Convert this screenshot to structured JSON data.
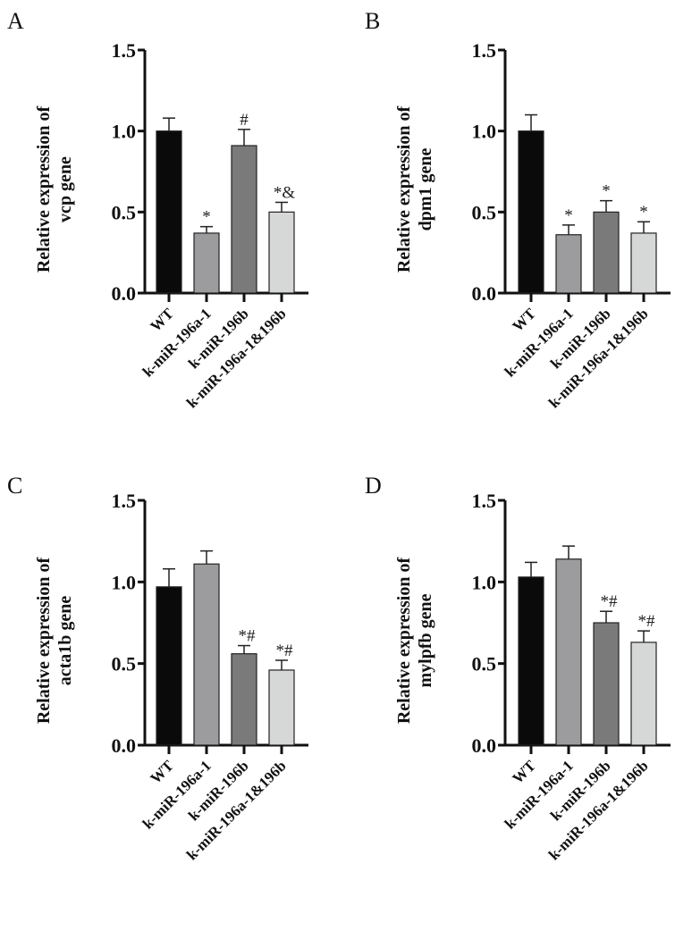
{
  "chart_data": [
    {
      "type": "bar",
      "panel": "A",
      "title": "",
      "ylabel_line1": "Relative expression of",
      "ylabel_line2": "vcp gene",
      "xlabel": "",
      "categories": [
        "WT",
        "k-miR-196a-1",
        "k-miR-196b",
        "k-miR-196a-1&196b"
      ],
      "values": [
        1.0,
        0.37,
        0.91,
        0.5
      ],
      "errors": [
        0.08,
        0.04,
        0.1,
        0.06
      ],
      "annotations": [
        "",
        "*",
        "#",
        "*&"
      ],
      "ylim": [
        0,
        1.5
      ],
      "yticks": [
        "0.0",
        "0.5",
        "1.0",
        "1.5"
      ],
      "grid": false
    },
    {
      "type": "bar",
      "panel": "B",
      "title": "",
      "ylabel_line1": "Relative expression of",
      "ylabel_line2": "dpm1 gene",
      "xlabel": "",
      "categories": [
        "WT",
        "k-miR-196a-1",
        "k-miR-196b",
        "k-miR-196a-1&196b"
      ],
      "values": [
        1.0,
        0.36,
        0.5,
        0.37
      ],
      "errors": [
        0.1,
        0.06,
        0.07,
        0.07
      ],
      "annotations": [
        "",
        "*",
        "*",
        "*"
      ],
      "ylim": [
        0,
        1.5
      ],
      "yticks": [
        "0.0",
        "0.5",
        "1.0",
        "1.5"
      ],
      "grid": false
    },
    {
      "type": "bar",
      "panel": "C",
      "title": "",
      "ylabel_line1": "Relative expression of",
      "ylabel_line2": "acta1b gene",
      "xlabel": "",
      "categories": [
        "WT",
        "k-miR-196a-1",
        "k-miR-196b",
        "k-miR-196a-1&196b"
      ],
      "values": [
        0.97,
        1.11,
        0.56,
        0.46
      ],
      "errors": [
        0.11,
        0.08,
        0.05,
        0.06
      ],
      "annotations": [
        "",
        "",
        "*#",
        "*#"
      ],
      "ylim": [
        0,
        1.5
      ],
      "yticks": [
        "0.0",
        "0.5",
        "1.0",
        "1.5"
      ],
      "grid": false
    },
    {
      "type": "bar",
      "panel": "D",
      "title": "",
      "ylabel_line1": "Relative expression of",
      "ylabel_line2": "mylpfb gene",
      "xlabel": "",
      "categories": [
        "WT",
        "k-miR-196a-1",
        "k-miR-196b",
        "k-miR-196a-1&196b"
      ],
      "values": [
        1.03,
        1.14,
        0.75,
        0.63
      ],
      "errors": [
        0.09,
        0.08,
        0.07,
        0.07
      ],
      "annotations": [
        "",
        "",
        "*#",
        "*#"
      ],
      "ylim": [
        0,
        1.5
      ],
      "yticks": [
        "0.0",
        "0.5",
        "1.0",
        "1.5"
      ],
      "grid": false
    }
  ],
  "colors": {
    "bars": [
      "#0a0a0a",
      "#9c9c9e",
      "#7a7a7a",
      "#d6d8d8"
    ],
    "axis": "#111111"
  }
}
